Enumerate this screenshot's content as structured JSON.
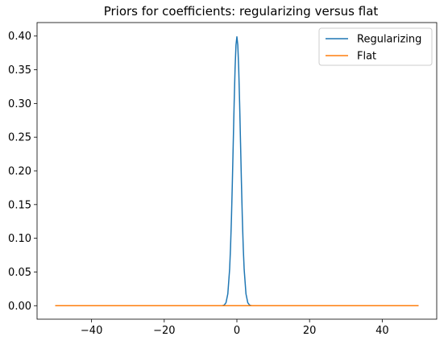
{
  "chart_data": {
    "type": "line",
    "title": "Priors for coefficients: regularizing versus flat",
    "xlabel": "",
    "ylabel": "",
    "xlim": [
      -55,
      55
    ],
    "ylim": [
      -0.02,
      0.42
    ],
    "x_ticks": [
      -40,
      -20,
      0,
      20,
      40
    ],
    "x_tick_labels": [
      "−40",
      "−20",
      "0",
      "20",
      "40"
    ],
    "y_ticks": [
      0.0,
      0.05,
      0.1,
      0.15,
      0.2,
      0.25,
      0.3,
      0.35,
      0.4
    ],
    "y_tick_labels": [
      "0.00",
      "0.05",
      "0.10",
      "0.15",
      "0.20",
      "0.25",
      "0.30",
      "0.35",
      "0.40"
    ],
    "grid": false,
    "legend_position": "top-right",
    "series": [
      {
        "name": "Regularizing",
        "color": "#1f77b4",
        "x": [
          -50,
          -4,
          -3.5,
          -3,
          -2.5,
          -2,
          -1.75,
          -1.5,
          -1.25,
          -1,
          -0.75,
          -0.5,
          -0.25,
          0,
          0.25,
          0.5,
          0.75,
          1,
          1.25,
          1.5,
          1.75,
          2,
          2.5,
          3,
          3.5,
          4,
          50
        ],
        "y": [
          0.0,
          0.0001,
          0.0009,
          0.0044,
          0.0175,
          0.054,
          0.0863,
          0.1295,
          0.1826,
          0.242,
          0.3011,
          0.3521,
          0.3867,
          0.3989,
          0.3867,
          0.3521,
          0.3011,
          0.242,
          0.1826,
          0.1295,
          0.0863,
          0.054,
          0.0175,
          0.0044,
          0.0009,
          0.0001,
          0.0
        ]
      },
      {
        "name": "Flat",
        "color": "#ff7f0e",
        "x": [
          -50,
          50
        ],
        "y": [
          0.0,
          0.0
        ]
      }
    ]
  }
}
